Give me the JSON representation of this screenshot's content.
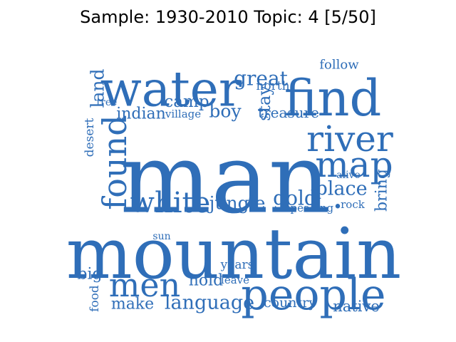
{
  "title": "Sample: 1930-2010 Topic: 4 [5/50]",
  "word_color": "#2f6eb8",
  "words": [
    {
      "text": "man",
      "rot": 0
    },
    {
      "text": "mountain",
      "rot": 0
    },
    {
      "text": "water",
      "rot": 0
    },
    {
      "text": "find",
      "rot": 0
    },
    {
      "text": "people",
      "rot": 0
    },
    {
      "text": "river",
      "rot": 0
    },
    {
      "text": "map",
      "rot": 0
    },
    {
      "text": "found",
      "rot": -90
    },
    {
      "text": "men",
      "rot": 0
    },
    {
      "text": "white",
      "rot": 0
    },
    {
      "text": "great",
      "rot": 0
    },
    {
      "text": "gold",
      "rot": 0
    },
    {
      "text": "place",
      "rot": 0
    },
    {
      "text": "jungle",
      "rot": 0
    },
    {
      "text": "language",
      "rot": 0
    },
    {
      "text": "boy",
      "rot": 0
    },
    {
      "text": "camp",
      "rot": 0
    },
    {
      "text": "indian",
      "rot": 0
    },
    {
      "text": "land",
      "rot": -90
    },
    {
      "text": "stay",
      "rot": -90
    },
    {
      "text": "treasure",
      "rot": 0
    },
    {
      "text": "bring",
      "rot": -90
    },
    {
      "text": "make",
      "rot": 0
    },
    {
      "text": "big",
      "rot": 0
    },
    {
      "text": "hold",
      "rot": 0
    },
    {
      "text": "native",
      "rot": 0
    },
    {
      "text": "country",
      "rot": 0
    },
    {
      "text": "follow",
      "rot": 0
    },
    {
      "text": "north",
      "rot": 0
    },
    {
      "text": "years",
      "rot": 0
    },
    {
      "text": "food",
      "rot": -90
    },
    {
      "text": "desert",
      "rot": -90
    },
    {
      "text": "village",
      "rot": 0
    },
    {
      "text": "speaking",
      "rot": 0
    },
    {
      "text": "rock",
      "rot": 0
    },
    {
      "text": "alive",
      "rot": 0
    },
    {
      "text": "leave",
      "rot": 0
    },
    {
      "text": "tree",
      "rot": 0
    },
    {
      "text": "sun",
      "rot": 0
    },
    {
      "text": "•",
      "rot": 0
    }
  ]
}
